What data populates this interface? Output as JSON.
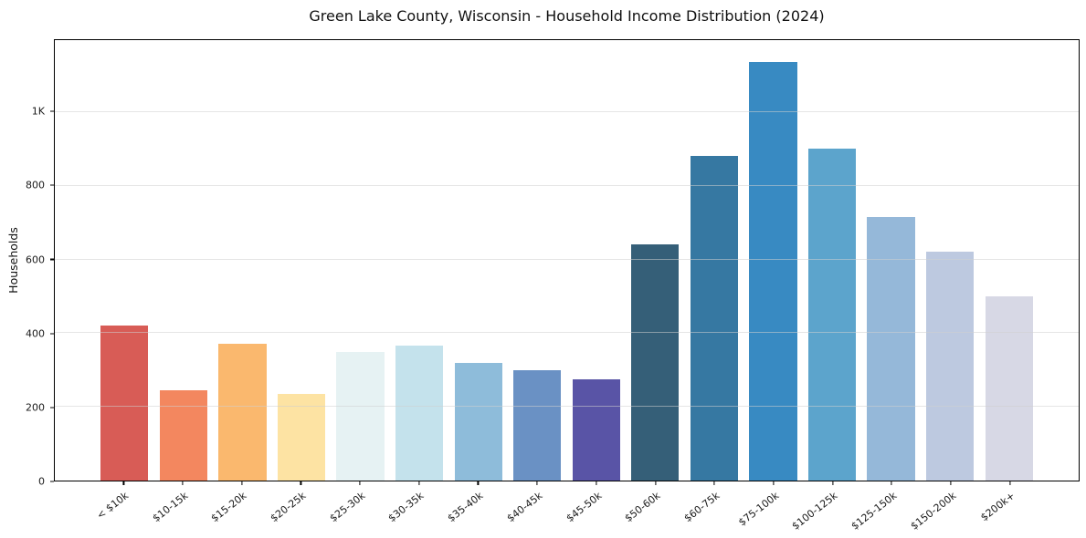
{
  "chart_data": {
    "type": "bar",
    "title": "Green Lake County, Wisconsin - Household Income Distribution (2024)",
    "xlabel": "",
    "ylabel": "Households",
    "categories": [
      "< $10k",
      "$10-15k",
      "$15-20k",
      "$20-25k",
      "$25-30k",
      "$30-35k",
      "$35-40k",
      "$40-45k",
      "$45-50k",
      "$50-60k",
      "$60-75k",
      "$75-100k",
      "$100-125k",
      "$125-150k",
      "$150-200k",
      "$200k+"
    ],
    "values": [
      420,
      245,
      370,
      235,
      350,
      365,
      320,
      300,
      275,
      640,
      880,
      1135,
      900,
      715,
      620,
      500
    ],
    "bar_colors": [
      "#d85c56",
      "#f3875f",
      "#fab86e",
      "#fde3a3",
      "#e6f2f3",
      "#c4e2ec",
      "#8ebcda",
      "#6a91c4",
      "#5954a6",
      "#355f78",
      "#3678a2",
      "#388ac2",
      "#5ca4cc",
      "#95b8d9",
      "#bdc9e0",
      "#d7d8e5"
    ],
    "ylim": [
      0,
      1195
    ],
    "yticks": [
      {
        "value": 0,
        "label": "0"
      },
      {
        "value": 200,
        "label": "200"
      },
      {
        "value": 400,
        "label": "400"
      },
      {
        "value": 600,
        "label": "600"
      },
      {
        "value": 800,
        "label": "800"
      },
      {
        "value": 1000,
        "label": "1K"
      }
    ],
    "grid": "horizontal",
    "legend": "none",
    "xtick_rotation_deg": 38,
    "spine_color": "#000000",
    "gridline_color": "#e8e8e8",
    "background_color": "#ffffff"
  }
}
